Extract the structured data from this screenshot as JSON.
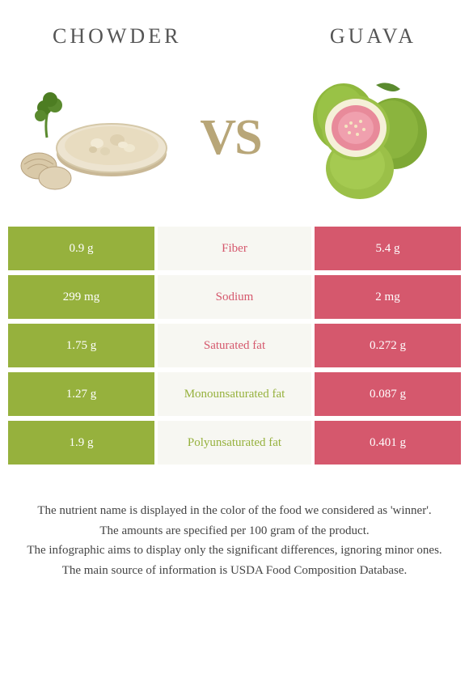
{
  "colors": {
    "left": "#96b13d",
    "right": "#d5586d",
    "winner_left_text": "#96b13d",
    "winner_right_text": "#d5586d",
    "midbg": "#f7f7f2",
    "vs": "#b8a678",
    "title": "#555555"
  },
  "header": {
    "left_title": "CHOWDER",
    "right_title": "GUAVA"
  },
  "vs_text": "VS",
  "rows": [
    {
      "left": "0.9 g",
      "label": "Fiber",
      "right": "5.4 g",
      "winner": "right"
    },
    {
      "left": "299 mg",
      "label": "Sodium",
      "right": "2 mg",
      "winner": "right"
    },
    {
      "left": "1.75 g",
      "label": "Saturated fat",
      "right": "0.272 g",
      "winner": "right"
    },
    {
      "left": "1.27 g",
      "label": "Monounsaturated fat",
      "right": "0.087 g",
      "winner": "left"
    },
    {
      "left": "1.9 g",
      "label": "Polyunsaturated fat",
      "right": "0.401 g",
      "winner": "left"
    }
  ],
  "footer": [
    "The nutrient name is displayed in the color of the food we considered as 'winner'.",
    "The amounts are specified per 100 gram of the product.",
    "The infographic aims to display only the significant differences, ignoring minor ones.",
    "The main source of information is USDA Food Composition Database."
  ]
}
